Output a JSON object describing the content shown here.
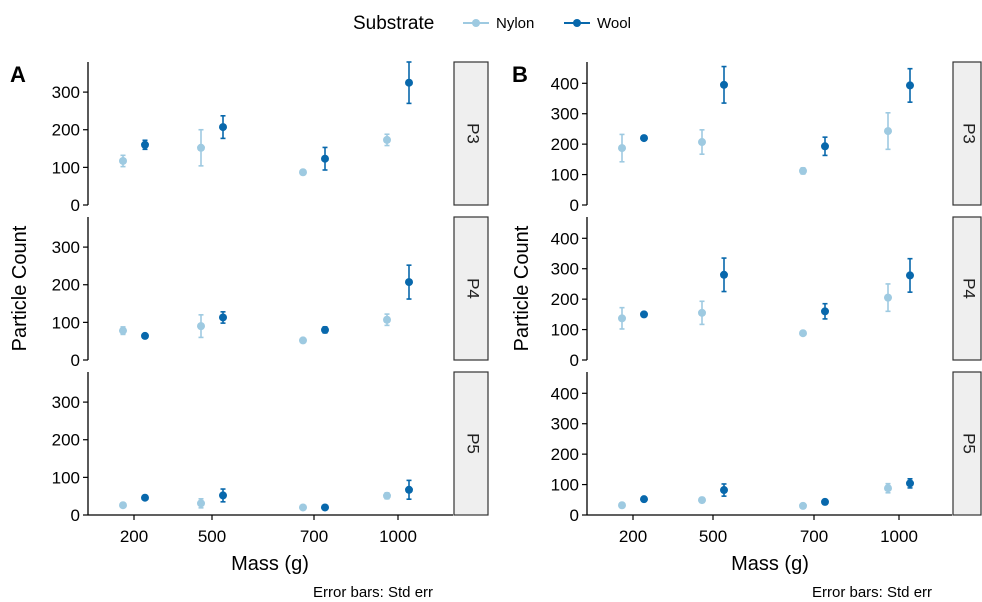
{
  "legend": {
    "title": "Substrate",
    "items": [
      {
        "label": "Nylon",
        "color": "#9ecae1"
      },
      {
        "label": "Wool",
        "color": "#0868ac"
      }
    ]
  },
  "caption": "Error bars: Std err",
  "chart_data": [
    {
      "type": "scatter",
      "panel_label": "A",
      "xlabel": "Mass (g)",
      "ylabel": "Particle Count",
      "categories": [
        "200",
        "500",
        "700",
        "1000"
      ],
      "ylim": [
        0,
        380
      ],
      "yticks": [
        0,
        100,
        200,
        300
      ],
      "error_bars": "Std err",
      "facets": [
        {
          "strip": "P3",
          "series": [
            {
              "name": "Nylon",
              "values": [
                117,
                152,
                87,
                173
              ],
              "err": [
                15,
                48,
                5,
                15
              ]
            },
            {
              "name": "Wool",
              "values": [
                160,
                207,
                123,
                325
              ],
              "err": [
                12,
                30,
                30,
                55
              ]
            }
          ]
        },
        {
          "strip": "P4",
          "series": [
            {
              "name": "Nylon",
              "values": [
                78,
                90,
                52,
                107
              ],
              "err": [
                10,
                30,
                5,
                15
              ]
            },
            {
              "name": "Wool",
              "values": [
                64,
                113,
                80,
                207
              ],
              "err": [
                5,
                15,
                8,
                45
              ]
            }
          ]
        },
        {
          "strip": "P5",
          "series": [
            {
              "name": "Nylon",
              "values": [
                26,
                31,
                20,
                51
              ],
              "err": [
                4,
                12,
                4,
                8
              ]
            },
            {
              "name": "Wool",
              "values": [
                46,
                52,
                20,
                67
              ],
              "err": [
                4,
                17,
                4,
                25
              ]
            }
          ]
        }
      ]
    },
    {
      "type": "scatter",
      "panel_label": "B",
      "xlabel": "Mass (g)",
      "ylabel": "Particle Count",
      "categories": [
        "200",
        "500",
        "700",
        "1000"
      ],
      "ylim": [
        0,
        470
      ],
      "yticks": [
        0,
        100,
        200,
        300,
        400
      ],
      "error_bars": "Std err",
      "facets": [
        {
          "strip": "P3",
          "series": [
            {
              "name": "Nylon",
              "values": [
                187,
                207,
                112,
                243
              ],
              "err": [
                45,
                40,
                10,
                60
              ]
            },
            {
              "name": "Wool",
              "values": [
                220,
                395,
                193,
                393
              ],
              "err": [
                5,
                60,
                30,
                55
              ]
            }
          ]
        },
        {
          "strip": "P4",
          "series": [
            {
              "name": "Nylon",
              "values": [
                137,
                155,
                88,
                205
              ],
              "err": [
                35,
                38,
                5,
                45
              ]
            },
            {
              "name": "Wool",
              "values": [
                150,
                280,
                160,
                278
              ],
              "err": [
                5,
                55,
                25,
                55
              ]
            }
          ]
        },
        {
          "strip": "P5",
          "series": [
            {
              "name": "Nylon",
              "values": [
                32,
                49,
                30,
                88
              ],
              "err": [
                6,
                8,
                5,
                15
              ]
            },
            {
              "name": "Wool",
              "values": [
                52,
                82,
                43,
                104
              ],
              "err": [
                4,
                20,
                8,
                15
              ]
            }
          ]
        }
      ]
    }
  ]
}
